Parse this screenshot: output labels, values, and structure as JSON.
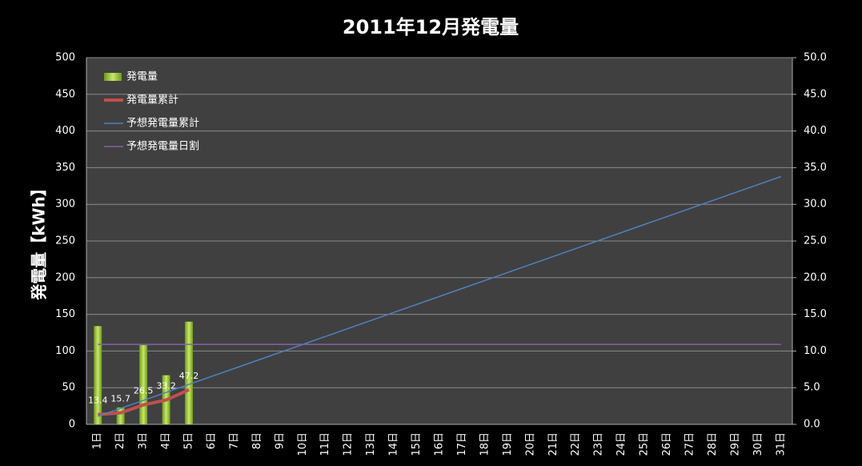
{
  "chart_data": {
    "type": "bar",
    "title": "2011年12月発電量",
    "ylabel": "発電量【kWh】",
    "categories": [
      "1日",
      "2日",
      "3日",
      "4日",
      "5日",
      "6日",
      "7日",
      "8日",
      "9日",
      "10日",
      "11日",
      "12日",
      "13日",
      "14日",
      "15日",
      "16日",
      "17日",
      "18日",
      "19日",
      "20日",
      "21日",
      "22日",
      "23日",
      "24日",
      "25日",
      "26日",
      "27日",
      "28日",
      "29日",
      "30日",
      "31日"
    ],
    "series": [
      {
        "name": "発電量",
        "type": "bar",
        "axis": "y2",
        "color": "#9bc93a",
        "values": [
          13.4,
          2.3,
          10.8,
          6.7,
          14.0,
          null,
          null,
          null,
          null,
          null,
          null,
          null,
          null,
          null,
          null,
          null,
          null,
          null,
          null,
          null,
          null,
          null,
          null,
          null,
          null,
          null,
          null,
          null,
          null,
          null,
          null
        ]
      },
      {
        "name": "発電量累計",
        "type": "line",
        "color": "#c0504d",
        "labels": true,
        "values": [
          13.4,
          15.7,
          26.5,
          33.2,
          47.2,
          null,
          null,
          null,
          null,
          null,
          null,
          null,
          null,
          null,
          null,
          null,
          null,
          null,
          null,
          null,
          null,
          null,
          null,
          null,
          null,
          null,
          null,
          null,
          null,
          null,
          null
        ]
      },
      {
        "name": "予想発電量累計",
        "type": "line",
        "color": "#4f81bd",
        "values": [
          10.9,
          21.8,
          32.7,
          43.6,
          54.5,
          65.4,
          76.3,
          87.2,
          98.1,
          109,
          119.9,
          130.8,
          141.7,
          152.6,
          163.5,
          174.4,
          185.3,
          196.2,
          207.1,
          218,
          228.9,
          239.8,
          250.7,
          261.6,
          272.5,
          283.4,
          294.3,
          305.2,
          316.1,
          327,
          337.9
        ]
      },
      {
        "name": "予想発電量日割",
        "type": "line",
        "axis": "y2",
        "color": "#8064a2",
        "values": [
          10.9,
          10.9,
          10.9,
          10.9,
          10.9,
          10.9,
          10.9,
          10.9,
          10.9,
          10.9,
          10.9,
          10.9,
          10.9,
          10.9,
          10.9,
          10.9,
          10.9,
          10.9,
          10.9,
          10.9,
          10.9,
          10.9,
          10.9,
          10.9,
          10.9,
          10.9,
          10.9,
          10.9,
          10.9,
          10.9,
          10.9
        ]
      }
    ],
    "ylim": [
      0,
      500
    ],
    "yticks": [
      0,
      50,
      100,
      150,
      200,
      250,
      300,
      350,
      400,
      450,
      500
    ],
    "y2lim": [
      0,
      50
    ],
    "y2ticks": [
      {
        "value": 0,
        "label": "0.0"
      },
      {
        "value": 5,
        "label": "5.0"
      },
      {
        "value": 10,
        "label": "10.0"
      },
      {
        "value": 15,
        "label": "15.0"
      },
      {
        "value": 20,
        "label": "20.0"
      },
      {
        "value": 25,
        "label": "25.0"
      },
      {
        "value": 30,
        "label": "30.0"
      },
      {
        "value": 35,
        "label": "35.0"
      },
      {
        "value": 40,
        "label": "40.0"
      },
      {
        "value": 45,
        "label": "45.0"
      },
      {
        "value": 50,
        "label": "50.0"
      }
    ],
    "grid": true,
    "legend": "top-left"
  }
}
